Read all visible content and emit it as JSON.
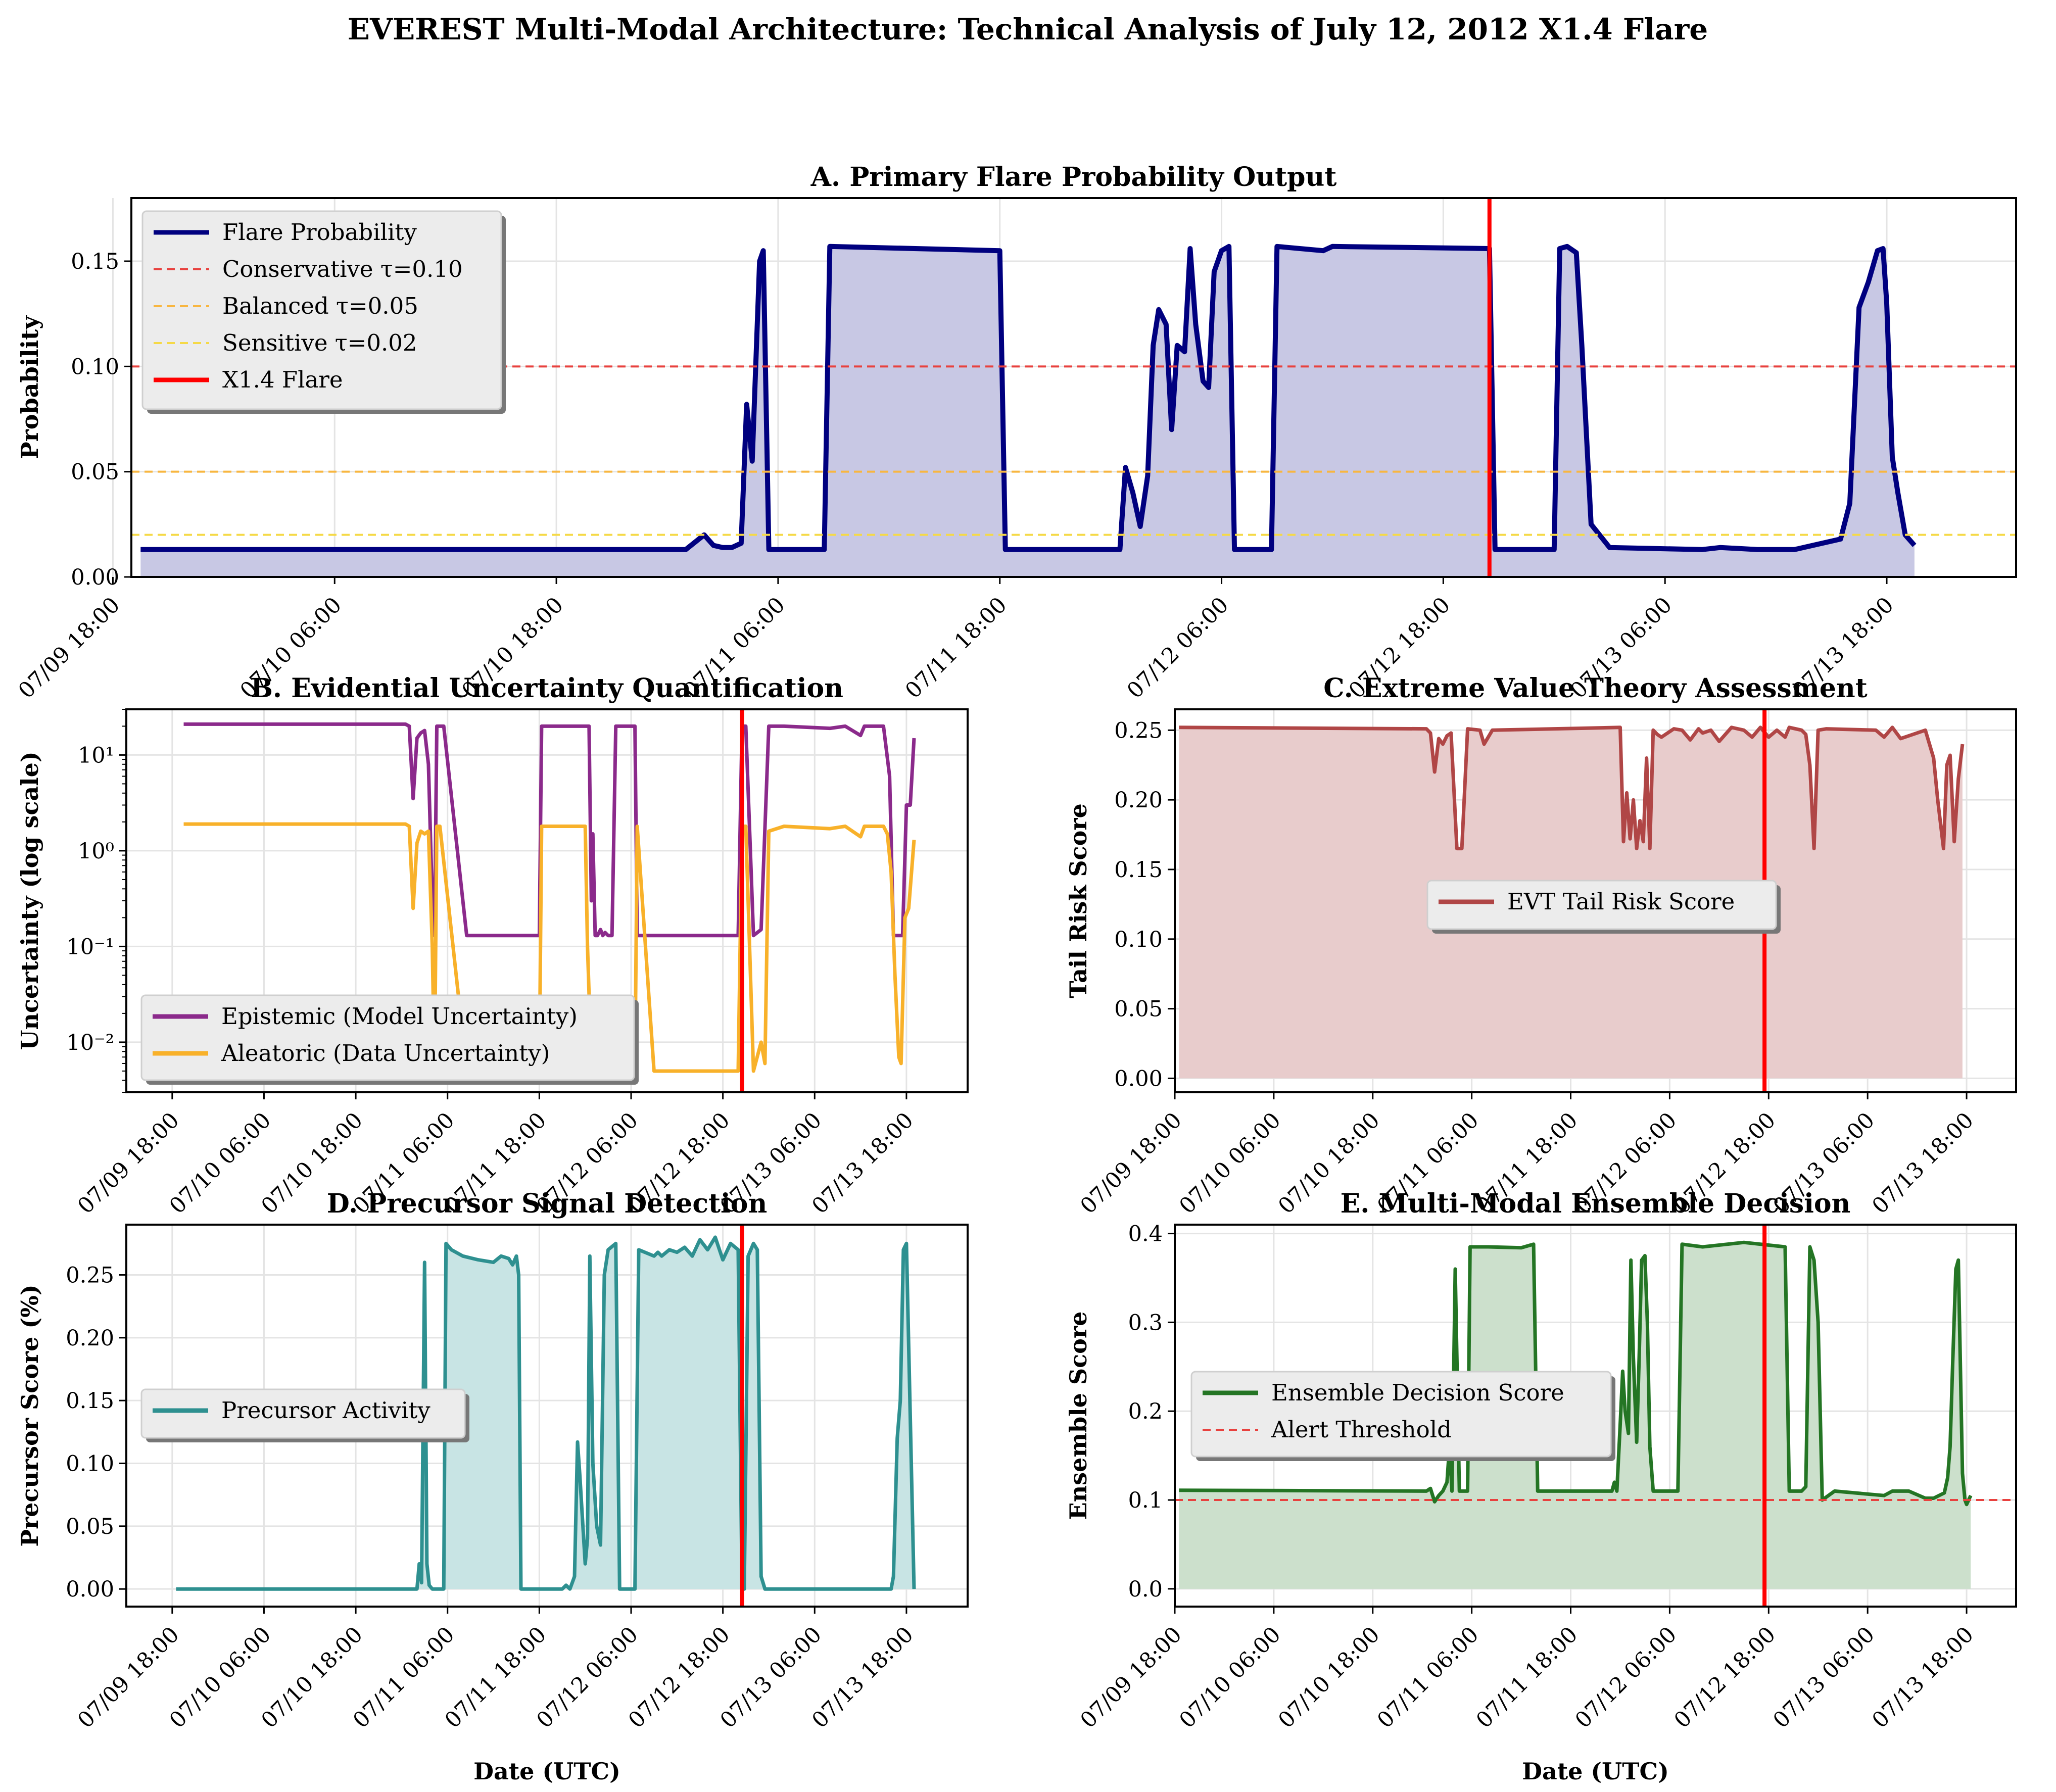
{
  "figure": {
    "title": "EVEREST Multi-Modal Architecture: Technical Analysis of July 12, 2012 X1.4 Flare"
  },
  "chart_data": [
    {
      "id": "A",
      "type": "area",
      "title": "A. Primary Flare Probability Output",
      "xlabel": "",
      "ylabel": "Probability",
      "x_unit": "hours since 07/09 12:00 UTC",
      "xlim": [
        7,
        109
      ],
      "ylim": [
        0,
        0.18
      ],
      "yscale": "linear",
      "yticks": [
        0.0,
        0.05,
        0.1,
        0.15
      ],
      "ytick_labels": [
        "0.00",
        "0.05",
        "0.10",
        "0.15"
      ],
      "xticks": [
        6,
        18,
        30,
        42,
        54,
        66,
        78,
        90,
        102
      ],
      "xtick_labels": [
        "07/09 18:00",
        "07/10 06:00",
        "07/10 18:00",
        "07/11 06:00",
        "07/11 18:00",
        "07/12 06:00",
        "07/12 18:00",
        "07/13 06:00",
        "07/13 18:00"
      ],
      "grid": true,
      "legend_position": "upper-left",
      "series": [
        {
          "name": "Flare Probability",
          "color": "#00007f",
          "fill": true,
          "fill_color": "#c8c8e4",
          "x": [
            7.5,
            37,
            38,
            38.5,
            39,
            39.5,
            40,
            40.3,
            40.6,
            41,
            41.2,
            41.5,
            44.5,
            44.8,
            54,
            54.3,
            60.5,
            60.8,
            61.2,
            61.6,
            62,
            62.3,
            62.6,
            63,
            63.3,
            63.6,
            64,
            64.3,
            64.6,
            65,
            65.3,
            65.6,
            66,
            66.4,
            66.7,
            68.7,
            69,
            71.5,
            72,
            80.5,
            80.8,
            84,
            84.3,
            84.7,
            85.2,
            85.5,
            86,
            87,
            92,
            93,
            95,
            97,
            98,
            99.5,
            100,
            100.5,
            101,
            101.5,
            101.8,
            102,
            102.3,
            102.6,
            103,
            103.5
          ],
          "y": [
            0.013,
            0.013,
            0.02,
            0.015,
            0.014,
            0.014,
            0.016,
            0.082,
            0.055,
            0.15,
            0.155,
            0.013,
            0.013,
            0.157,
            0.155,
            0.013,
            0.013,
            0.052,
            0.04,
            0.024,
            0.048,
            0.11,
            0.127,
            0.12,
            0.07,
            0.11,
            0.107,
            0.156,
            0.12,
            0.093,
            0.09,
            0.145,
            0.155,
            0.157,
            0.013,
            0.013,
            0.157,
            0.155,
            0.157,
            0.156,
            0.013,
            0.013,
            0.156,
            0.157,
            0.154,
            0.11,
            0.025,
            0.014,
            0.013,
            0.014,
            0.013,
            0.013,
            0.015,
            0.018,
            0.035,
            0.128,
            0.14,
            0.155,
            0.156,
            0.13,
            0.057,
            0.04,
            0.02,
            0.015
          ]
        },
        {
          "name": "Conservative τ=0.10",
          "color": "#e8413e",
          "dash": true,
          "hline": 0.1
        },
        {
          "name": "Balanced τ=0.05",
          "color": "#f8b640",
          "dash": true,
          "hline": 0.05
        },
        {
          "name": "Sensitive τ=0.02",
          "color": "#f5d947",
          "dash": true,
          "hline": 0.02
        },
        {
          "name": "X1.4 Flare",
          "color": "#ff0000",
          "vline": 80.5
        }
      ]
    },
    {
      "id": "B",
      "type": "line",
      "title": "B. Evidential Uncertainty Quantification",
      "xlabel": "",
      "ylabel": "Uncertainty (log scale)",
      "xlim": [
        0,
        110
      ],
      "ylim": [
        0.003,
        30
      ],
      "yscale": "log",
      "yticks": [
        0.01,
        0.1,
        1,
        10
      ],
      "ytick_labels": [
        "10⁻²",
        "10⁻¹",
        "10⁰",
        "10¹"
      ],
      "xticks": [
        6,
        18,
        30,
        42,
        54,
        66,
        78,
        90,
        102
      ],
      "xtick_labels": [
        "07/09 18:00",
        "07/10 06:00",
        "07/10 18:00",
        "07/11 06:00",
        "07/11 18:00",
        "07/12 06:00",
        "07/12 18:00",
        "07/13 06:00",
        "07/13 18:00"
      ],
      "grid": true,
      "legend_position": "lower-left",
      "series": [
        {
          "name": "Epistemic (Model Uncertainty)",
          "color": "#8b2a8b",
          "x": [
            7.5,
            36.5,
            37,
            37.5,
            38,
            38.5,
            39,
            39.5,
            40,
            40.3,
            40.6,
            41,
            41.5,
            44.5,
            44.8,
            54,
            54.3,
            60.5,
            60.8,
            61,
            61.3,
            61.6,
            62,
            62.3,
            62.6,
            63,
            63.5,
            64,
            66.5,
            66.8,
            68.7,
            69,
            72,
            80,
            80.5,
            81,
            82,
            83,
            84,
            86,
            92,
            94,
            96,
            96.5,
            97,
            99,
            99.8,
            100.3,
            100.8,
            101.5,
            102,
            102.5,
            103
          ],
          "y": [
            21,
            21,
            20,
            3.5,
            15,
            17,
            18,
            8,
            0.3,
            0.13,
            20,
            20,
            20,
            0.13,
            0.13,
            0.13,
            20,
            20,
            0.3,
            1.5,
            0.13,
            0.13,
            0.15,
            0.13,
            0.14,
            0.13,
            0.13,
            20,
            20,
            0.13,
            0.13,
            0.13,
            0.13,
            0.13,
            20,
            20,
            0.13,
            0.15,
            20,
            20,
            19,
            20,
            16,
            20,
            20,
            20,
            6,
            0.13,
            0.13,
            0.13,
            3,
            3,
            15
          ]
        },
        {
          "name": "Aleatoric (Data Uncertainty)",
          "color": "#f8b12a",
          "x": [
            7.5,
            36.5,
            37,
            37.5,
            38,
            38.5,
            39,
            39.5,
            40,
            40.3,
            40.6,
            41,
            44.5,
            44.8,
            54,
            54.3,
            60,
            60.3,
            60.8,
            61.2,
            61.6,
            62,
            62.4,
            62.8,
            63.2,
            63.6,
            64,
            66.5,
            66.8,
            69,
            72,
            80,
            80.5,
            81,
            82,
            83,
            83.5,
            84,
            86,
            92,
            94,
            96,
            96.5,
            97,
            99,
            99.5,
            100,
            100.5,
            101,
            101.3,
            101.8,
            102.3,
            103
          ],
          "y": [
            1.9,
            1.9,
            1.8,
            0.25,
            1.2,
            1.6,
            1.5,
            1.6,
            0.1,
            0.005,
            1.8,
            1.8,
            0.005,
            0.005,
            0.005,
            1.8,
            1.8,
            0.1,
            0.006,
            0.02,
            0.007,
            0.006,
            0.008,
            0.006,
            0.007,
            0.006,
            0.006,
            0.005,
            1.8,
            0.005,
            0.005,
            0.005,
            1.8,
            1.8,
            0.005,
            0.01,
            0.006,
            1.6,
            1.8,
            1.7,
            1.8,
            1.4,
            1.8,
            1.8,
            1.8,
            1.5,
            0.6,
            0.05,
            0.007,
            0.006,
            0.2,
            0.25,
            1.3
          ]
        },
        {
          "name": "X1.4 Flare",
          "color": "#ff0000",
          "vline": 80.5
        }
      ]
    },
    {
      "id": "C",
      "type": "area",
      "title": "C. Extreme Value Theory Assessment",
      "xlabel": "",
      "ylabel": "Tail Risk Score",
      "xlim": [
        6,
        108
      ],
      "ylim": [
        -0.01,
        0.265
      ],
      "yscale": "linear",
      "yticks": [
        0.0,
        0.05,
        0.1,
        0.15,
        0.2,
        0.25
      ],
      "ytick_labels": [
        "0.00",
        "0.05",
        "0.10",
        "0.15",
        "0.20",
        "0.25"
      ],
      "xticks": [
        6,
        18,
        30,
        42,
        54,
        66,
        78,
        90,
        102
      ],
      "xtick_labels": [
        "07/09 18:00",
        "07/10 06:00",
        "07/10 18:00",
        "07/11 06:00",
        "07/11 18:00",
        "07/12 06:00",
        "07/12 18:00",
        "07/13 06:00",
        "07/13 18:00"
      ],
      "grid": true,
      "legend_position": "center",
      "series": [
        {
          "name": "EVT Tail Risk Score",
          "color": "#b04646",
          "fill": true,
          "fill_color": "#e8cccc",
          "x": [
            6.5,
            36.5,
            37,
            37.5,
            38,
            38.5,
            39,
            39.5,
            40.2,
            40.8,
            41.5,
            43,
            43.5,
            44.5,
            60,
            60.4,
            60.8,
            61.2,
            61.6,
            62,
            62.4,
            62.8,
            63.2,
            63.6,
            64,
            64.5,
            65,
            66.5,
            67.5,
            68.5,
            69.5,
            70,
            71,
            72,
            73.5,
            75,
            76,
            77,
            78,
            79,
            80,
            80.5,
            82,
            82.5,
            83,
            83.5,
            84,
            85,
            91,
            92,
            93,
            94,
            97,
            97.5,
            98,
            98.5,
            99.2,
            99.6,
            100,
            100.5,
            101,
            101.5
          ],
          "y": [
            0.252,
            0.251,
            0.248,
            0.22,
            0.244,
            0.24,
            0.246,
            0.248,
            0.165,
            0.165,
            0.251,
            0.25,
            0.24,
            0.25,
            0.252,
            0.17,
            0.205,
            0.172,
            0.2,
            0.165,
            0.185,
            0.17,
            0.23,
            0.165,
            0.25,
            0.247,
            0.245,
            0.251,
            0.25,
            0.243,
            0.251,
            0.248,
            0.25,
            0.242,
            0.252,
            0.25,
            0.245,
            0.252,
            0.245,
            0.25,
            0.245,
            0.252,
            0.25,
            0.247,
            0.225,
            0.165,
            0.25,
            0.251,
            0.25,
            0.245,
            0.252,
            0.244,
            0.25,
            0.24,
            0.23,
            0.2,
            0.165,
            0.225,
            0.232,
            0.17,
            0.215,
            0.24
          ]
        },
        {
          "name": "X1.4 Flare",
          "color": "#ff0000",
          "vline": 77.5
        }
      ]
    },
    {
      "id": "D",
      "type": "area",
      "title": "D. Precursor Signal Detection",
      "xlabel": "Date (UTC)",
      "ylabel": "Precursor Score (%)",
      "xlim": [
        0,
        110
      ],
      "ylim": [
        -0.014,
        0.29
      ],
      "yscale": "linear",
      "yticks": [
        0.0,
        0.05,
        0.1,
        0.15,
        0.2,
        0.25
      ],
      "ytick_labels": [
        "0.00",
        "0.05",
        "0.10",
        "0.15",
        "0.20",
        "0.25"
      ],
      "xticks": [
        6,
        18,
        30,
        42,
        54,
        66,
        78,
        90,
        102
      ],
      "xtick_labels": [
        "07/09 18:00",
        "07/10 06:00",
        "07/10 18:00",
        "07/11 06:00",
        "07/11 18:00",
        "07/12 06:00",
        "07/12 18:00",
        "07/13 06:00",
        "07/13 18:00"
      ],
      "grid": true,
      "legend_position": "center-left",
      "series": [
        {
          "name": "Precursor Activity",
          "color": "#2e9090",
          "fill": true,
          "fill_color": "#c8e4e4",
          "x": [
            6.5,
            38,
            38.3,
            38.6,
            39,
            39.3,
            39.6,
            40,
            41.5,
            41.8,
            42.5,
            44,
            46,
            48,
            49,
            50,
            50.5,
            51,
            51.3,
            51.6,
            57,
            57.5,
            58,
            58.3,
            58.6,
            59,
            59.3,
            59.6,
            60,
            60.3,
            60.6,
            61,
            61.5,
            62,
            62.5,
            63,
            64,
            64.5,
            65,
            66.5,
            67,
            69,
            69.5,
            70,
            71,
            72,
            73,
            74,
            75,
            76,
            77,
            78,
            79,
            80,
            80.5,
            80.8,
            81.3,
            82,
            82.5,
            83,
            83.5,
            100,
            100.3,
            100.8,
            101.2,
            101.6,
            102,
            103
          ],
          "y": [
            0,
            0,
            0.02,
            0.005,
            0.26,
            0.02,
            0.003,
            0,
            0,
            0.275,
            0.27,
            0.265,
            0.262,
            0.26,
            0.265,
            0.263,
            0.258,
            0.265,
            0.25,
            0,
            0,
            0.003,
            0,
            0.005,
            0.01,
            0.117,
            0.09,
            0.06,
            0.02,
            0.04,
            0.265,
            0.1,
            0.05,
            0.035,
            0.25,
            0.27,
            0.275,
            0,
            0,
            0,
            0.27,
            0.265,
            0.268,
            0.265,
            0.27,
            0.268,
            0.272,
            0.265,
            0.278,
            0.27,
            0.28,
            0.262,
            0.275,
            0.27,
            0,
            0,
            0.265,
            0.275,
            0.27,
            0.01,
            0,
            0,
            0.01,
            0.12,
            0.15,
            0.27,
            0.275,
            0
          ]
        },
        {
          "name": "X1.4 Flare",
          "color": "#ff0000",
          "vline": 80.5
        }
      ]
    },
    {
      "id": "E",
      "type": "area",
      "title": "E. Multi-Modal Ensemble Decision",
      "xlabel": "Date (UTC)",
      "ylabel": "Ensemble Score",
      "xlim": [
        6,
        108
      ],
      "ylim": [
        -0.02,
        0.41
      ],
      "yscale": "linear",
      "yticks": [
        0.0,
        0.1,
        0.2,
        0.3,
        0.4
      ],
      "ytick_labels": [
        "0.0",
        "0.1",
        "0.2",
        "0.3",
        "0.4"
      ],
      "xticks": [
        6,
        18,
        30,
        42,
        54,
        66,
        78,
        90,
        102
      ],
      "xtick_labels": [
        "07/09 18:00",
        "07/10 06:00",
        "07/10 18:00",
        "07/11 06:00",
        "07/11 18:00",
        "07/12 06:00",
        "07/12 18:00",
        "07/13 06:00",
        "07/13 18:00"
      ],
      "grid": true,
      "legend_position": "center-left",
      "series": [
        {
          "name": "Ensemble Decision Score",
          "color": "#247524",
          "fill": true,
          "fill_color": "#cce0cc",
          "x": [
            6.5,
            36.5,
            37,
            37.5,
            38,
            38.5,
            39,
            39.3,
            39.6,
            40,
            40.5,
            41.5,
            41.8,
            44,
            48,
            49.5,
            50,
            53,
            59,
            59.3,
            59.6,
            60,
            60.3,
            60.6,
            61,
            61.3,
            61.6,
            62,
            62.3,
            62.6,
            63,
            63.3,
            63.6,
            64,
            64.5,
            67,
            67.5,
            70,
            75,
            80,
            80.5,
            82,
            82.5,
            83,
            83.5,
            84,
            84.5,
            86,
            92,
            93,
            95,
            97,
            98,
            99.3,
            99.7,
            100,
            100.3,
            100.7,
            101,
            101.5,
            101.8,
            102,
            102.5
          ],
          "y": [
            0.111,
            0.11,
            0.113,
            0.098,
            0.105,
            0.11,
            0.12,
            0.16,
            0.11,
            0.36,
            0.11,
            0.11,
            0.385,
            0.385,
            0.384,
            0.388,
            0.11,
            0.11,
            0.11,
            0.12,
            0.11,
            0.185,
            0.245,
            0.2,
            0.175,
            0.37,
            0.26,
            0.165,
            0.26,
            0.37,
            0.375,
            0.3,
            0.16,
            0.11,
            0.11,
            0.11,
            0.388,
            0.385,
            0.39,
            0.385,
            0.11,
            0.11,
            0.115,
            0.385,
            0.37,
            0.3,
            0.1,
            0.11,
            0.105,
            0.11,
            0.11,
            0.102,
            0.102,
            0.108,
            0.125,
            0.16,
            0.25,
            0.36,
            0.37,
            0.13,
            0.1,
            0.095,
            0.105
          ]
        },
        {
          "name": "Alert Threshold",
          "color": "#e8413e",
          "dash": true,
          "hline": 0.1
        },
        {
          "name": "X1.4 Flare",
          "color": "#ff0000",
          "vline": 77.5
        }
      ]
    }
  ]
}
